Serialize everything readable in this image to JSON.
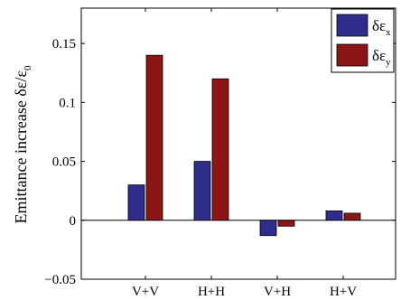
{
  "chart_data": {
    "type": "bar",
    "categories": [
      "V+V",
      "H+H",
      "V+H",
      "H+V"
    ],
    "series": [
      {
        "name": "δε_x",
        "values": [
          0.03,
          0.05,
          -0.013,
          0.008
        ],
        "color": "#2e2d8c"
      },
      {
        "name": "δε_y",
        "values": [
          0.14,
          0.12,
          -0.005,
          0.006
        ],
        "color": "#8c1515"
      }
    ],
    "title": "",
    "xlabel": "",
    "ylabel": "Emittance increase  δε/ε",
    "ylabel_sub": "0",
    "ylim": [
      -0.05,
      0.18
    ],
    "yticks": [
      -0.05,
      0,
      0.05,
      0.1,
      0.15
    ],
    "ytick_labels": [
      "−0.05",
      "0",
      "0.05",
      "0.1",
      "0.15"
    ],
    "grid": false,
    "legend": {
      "placement": "top-right",
      "entries": [
        {
          "base": "δε",
          "sub": "x"
        },
        {
          "base": "δε",
          "sub": "y"
        }
      ]
    }
  }
}
